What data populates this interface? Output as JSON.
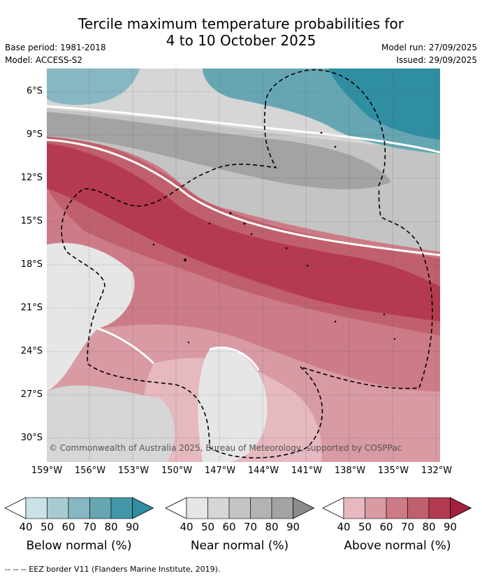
{
  "title_line1": "Tercile maximum temperature probabilities for",
  "title_line2": "4 to 10 October 2025",
  "base_period": "Base period: 1981-2018",
  "model": "Model: ACCESS-S2",
  "model_run": "Model run: 27/09/2025",
  "issued": "Issued: 29/09/2025",
  "copyright": "© Commonwealth of Australia 2025, Bureau of Meteorology, supported by COSPPac",
  "lat_labels": [
    "6°S",
    "9°S",
    "12°S",
    "15°S",
    "18°S",
    "21°S",
    "24°S",
    "27°S",
    "30°S"
  ],
  "lon_labels": [
    "159°W",
    "156°W",
    "153°W",
    "150°W",
    "147°W",
    "144°W",
    "141°W",
    "138°W",
    "135°W",
    "132°W"
  ],
  "legend": {
    "ticks": [
      "40",
      "50",
      "60",
      "70",
      "80",
      "90"
    ],
    "below": {
      "label": "Below normal (%)",
      "colors": [
        "#c9e2e8",
        "#a6cbd3",
        "#87b7c2",
        "#66a6b3",
        "#4397a8",
        "#2f8ea1"
      ]
    },
    "near": {
      "label": "Near normal (%)",
      "colors": [
        "#e6e6e6",
        "#d6d6d6",
        "#c4c4c4",
        "#b3b3b3",
        "#a3a3a3",
        "#8c8c8c"
      ]
    },
    "above": {
      "label": "Above normal (%)",
      "colors": [
        "#e6b8bf",
        "#d89aa3",
        "#cc7b87",
        "#c0606c",
        "#b53a50",
        "#a32040"
      ]
    }
  },
  "footnote": "-- -- -- EEZ border V11 (Flanders Marine Institute, 2019)."
}
